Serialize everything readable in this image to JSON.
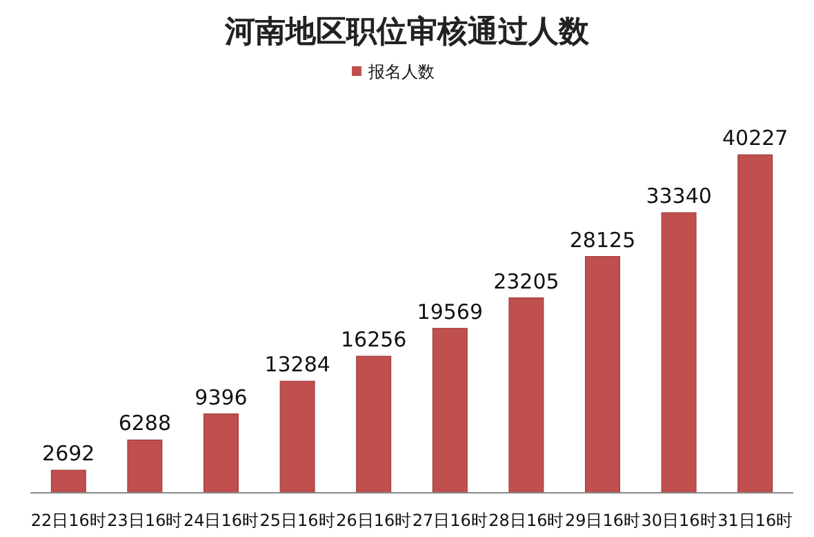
{
  "chart_data": {
    "type": "bar",
    "title": "河南地区职位审核通过人数",
    "categories": [
      "22日16时",
      "23日16时",
      "24日16时",
      "25日16时",
      "26日16时",
      "27日16时",
      "28日16时",
      "29日16时",
      "30日16时",
      "31日16时"
    ],
    "series": [
      {
        "name": "报名人数",
        "color": "#c0504d",
        "values": [
          2692,
          6288,
          9396,
          13284,
          16256,
          19569,
          23205,
          28125,
          33340,
          40227
        ]
      }
    ],
    "data_labels": true,
    "legend": "top"
  }
}
